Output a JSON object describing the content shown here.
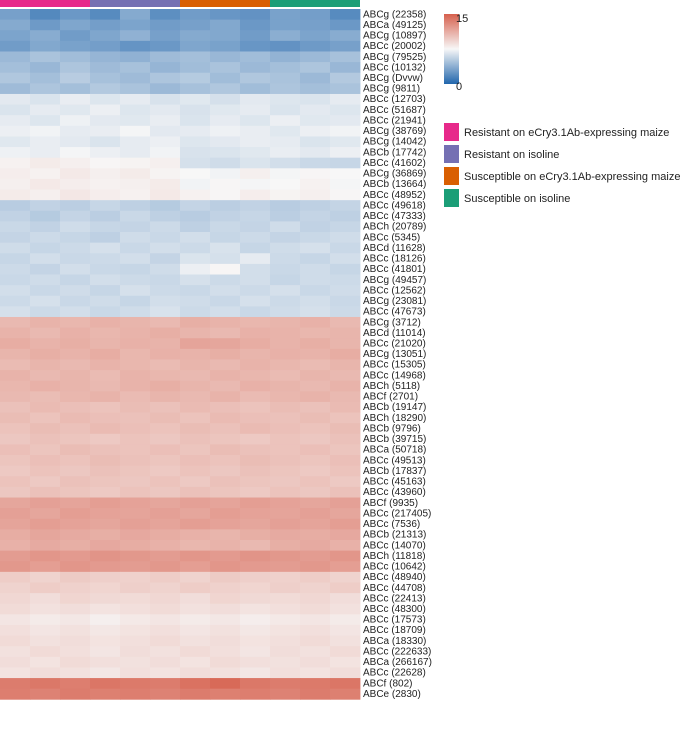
{
  "chart_data": {
    "type": "heatmap",
    "columns": 12,
    "groups": [
      {
        "name": "Resistant on eCry3.1Ab-expressing maize",
        "color": "#e7298a"
      },
      {
        "name": "Resistant on isoline",
        "color": "#7570b3"
      },
      {
        "name": "Susceptible on eCry3.1Ab-expressing maize",
        "color": "#d95f02"
      },
      {
        "name": "Susceptible on isoline",
        "color": "#1b9e77"
      }
    ],
    "color_scale": {
      "min": 0,
      "max": 15,
      "tick_min": "0",
      "tick_max": "15",
      "low_color": "#2166ac",
      "mid_color": "#f7f7f7",
      "high_color": "#d6604d"
    },
    "rows": [
      {
        "label": "ABCg (22358)",
        "values": [
          3.0,
          1.8,
          2.6,
          1.9,
          3.5,
          2.1,
          2.8,
          2.5,
          2.3,
          3.1,
          2.9,
          1.9
        ]
      },
      {
        "label": "ABCa (49125)",
        "values": [
          3.5,
          2.7,
          3.3,
          2.9,
          3.2,
          2.8,
          3.0,
          3.4,
          2.6,
          3.1,
          3.0,
          2.6
        ]
      },
      {
        "label": "ABCg (10897)",
        "values": [
          3.2,
          3.6,
          2.8,
          3.3,
          3.9,
          3.0,
          3.5,
          3.4,
          2.8,
          3.7,
          3.2,
          3.6
        ]
      },
      {
        "label": "ABCc (20002)",
        "values": [
          2.8,
          3.4,
          3.1,
          2.9,
          2.4,
          2.6,
          3.3,
          3.1,
          2.5,
          2.3,
          2.7,
          3.0
        ]
      },
      {
        "label": "ABCg (79525)",
        "values": [
          4.3,
          4.8,
          4.5,
          4.1,
          3.9,
          4.4,
          4.6,
          4.2,
          4.5,
          4.0,
          4.3,
          4.7
        ]
      },
      {
        "label": "ABCc (10132)",
        "values": [
          4.6,
          4.2,
          4.9,
          4.4,
          4.7,
          4.1,
          4.5,
          4.8,
          4.3,
          4.6,
          4.9,
          4.2
        ]
      },
      {
        "label": "ABCg (Dvvw)",
        "values": [
          5.0,
          4.6,
          5.3,
          4.7,
          4.4,
          4.9,
          5.2,
          4.5,
          5.0,
          4.8,
          4.3,
          5.1
        ]
      },
      {
        "label": "ABCg (9811)",
        "values": [
          4.4,
          4.9,
          4.6,
          5.1,
          4.8,
          4.3,
          4.7,
          5.0,
          4.5,
          4.9,
          4.6,
          4.8
        ]
      },
      {
        "label": "ABCc (12703)",
        "values": [
          6.8,
          6.5,
          7.0,
          6.6,
          6.9,
          6.4,
          6.7,
          6.3,
          6.8,
          6.6,
          6.5,
          6.9
        ]
      },
      {
        "label": "ABCc (51687)",
        "values": [
          6.5,
          6.9,
          6.7,
          7.1,
          6.6,
          6.8,
          6.4,
          6.7,
          6.9,
          6.5,
          6.8,
          6.6
        ]
      },
      {
        "label": "ABCc (21941)",
        "values": [
          6.9,
          6.6,
          7.2,
          6.8,
          6.7,
          7.0,
          6.5,
          6.9,
          6.6,
          7.1,
          6.7,
          6.8
        ]
      },
      {
        "label": "ABCg (38769)",
        "values": [
          7.1,
          7.3,
          6.9,
          7.0,
          7.4,
          6.8,
          6.9,
          7.2,
          7.0,
          6.7,
          7.1,
          7.3
        ]
      },
      {
        "label": "ABCg (14042)",
        "values": [
          6.7,
          7.0,
          6.8,
          6.5,
          6.9,
          7.1,
          6.6,
          6.8,
          7.0,
          6.9,
          6.5,
          6.7
        ]
      },
      {
        "label": "ABCb (17742)",
        "values": [
          7.2,
          7.0,
          7.4,
          7.1,
          6.9,
          7.3,
          6.4,
          6.5,
          6.7,
          7.0,
          6.8,
          7.1
        ]
      },
      {
        "label": "ABCc (41602)",
        "values": [
          7.8,
          8.1,
          7.9,
          7.6,
          7.7,
          7.9,
          6.3,
          6.1,
          6.5,
          6.2,
          5.9,
          5.8
        ]
      },
      {
        "label": "ABCg (36869)",
        "values": [
          8.0,
          7.8,
          8.2,
          7.9,
          8.1,
          7.7,
          7.5,
          7.3,
          7.9,
          7.4,
          7.6,
          7.5
        ]
      },
      {
        "label": "ABCb (13664)",
        "values": [
          7.9,
          8.2,
          8.0,
          7.8,
          7.9,
          8.1,
          7.3,
          7.6,
          7.4,
          7.5,
          7.8,
          7.4
        ]
      },
      {
        "label": "ABCc (48952)",
        "values": [
          8.1,
          7.9,
          8.3,
          8.0,
          7.8,
          8.2,
          7.8,
          7.6,
          8.0,
          7.7,
          7.9,
          7.6
        ]
      },
      {
        "label": "ABCc (49618)",
        "values": [
          5.3,
          5.6,
          5.4,
          5.8,
          5.5,
          5.2,
          5.7,
          5.4,
          5.6,
          5.3,
          5.5,
          5.7
        ]
      },
      {
        "label": "ABCc (47333)",
        "values": [
          5.6,
          5.2,
          5.7,
          5.4,
          5.9,
          5.5,
          5.3,
          5.6,
          5.8,
          5.4,
          5.7,
          5.5
        ]
      },
      {
        "label": "ABCh (20789)",
        "values": [
          5.9,
          5.6,
          6.1,
          5.8,
          5.7,
          6.0,
          5.5,
          5.9,
          5.7,
          6.1,
          5.6,
          5.8
        ]
      },
      {
        "label": "ABCc (5345)",
        "values": [
          5.7,
          6.0,
          5.8,
          5.5,
          6.1,
          5.9,
          6.2,
          5.8,
          6.0,
          5.7,
          5.9,
          6.1
        ]
      },
      {
        "label": "ABCd (11628)",
        "values": [
          6.1,
          5.8,
          6.0,
          6.3,
          5.9,
          6.2,
          6.0,
          6.4,
          5.8,
          6.1,
          6.3,
          5.9
        ]
      },
      {
        "label": "ABCc (18126)",
        "values": [
          5.8,
          6.2,
          5.9,
          6.0,
          6.2,
          5.7,
          6.5,
          6.3,
          6.9,
          6.0,
          5.8,
          6.2
        ]
      },
      {
        "label": "ABCc (41801)",
        "values": [
          6.0,
          5.7,
          6.2,
          5.9,
          5.8,
          6.1,
          7.1,
          7.6,
          6.2,
          5.9,
          6.1,
          5.8
        ]
      },
      {
        "label": "ABCg (49457)",
        "values": [
          5.9,
          6.1,
          5.8,
          6.2,
          6.0,
          5.9,
          6.3,
          6.0,
          6.2,
          5.8,
          6.1,
          6.0
        ]
      },
      {
        "label": "ABCc (12562)",
        "values": [
          6.2,
          5.9,
          6.1,
          5.8,
          6.3,
          6.0,
          5.9,
          6.2,
          6.0,
          6.3,
          5.9,
          6.1
        ]
      },
      {
        "label": "ABCg (23081)",
        "values": [
          6.0,
          6.3,
          5.9,
          6.1,
          5.8,
          6.2,
          6.1,
          5.9,
          6.3,
          6.0,
          6.2,
          5.9
        ]
      },
      {
        "label": "ABCc (47673)",
        "values": [
          6.3,
          6.0,
          6.2,
          5.9,
          6.1,
          6.4,
          6.0,
          6.2,
          5.9,
          6.1,
          6.3,
          6.0
        ]
      },
      {
        "label": "ABCg (3712)",
        "values": [
          10.6,
          10.9,
          10.7,
          11.0,
          10.8,
          10.6,
          11.1,
          10.9,
          10.7,
          10.8,
          11.0,
          10.6
        ]
      },
      {
        "label": "ABCd (11014)",
        "values": [
          10.9,
          10.6,
          11.0,
          10.7,
          10.9,
          11.1,
          10.8,
          10.6,
          11.0,
          10.9,
          10.7,
          10.8
        ]
      },
      {
        "label": "ABCc (21020)",
        "values": [
          11.2,
          10.9,
          11.1,
          10.8,
          11.0,
          10.9,
          11.6,
          11.5,
          11.2,
          10.9,
          11.1,
          10.8
        ]
      },
      {
        "label": "ABCg (13051)",
        "values": [
          10.8,
          11.1,
          10.9,
          11.2,
          10.7,
          11.0,
          10.9,
          11.1,
          10.8,
          11.0,
          10.9,
          11.2
        ]
      },
      {
        "label": "ABCc (15305)",
        "values": [
          10.5,
          10.8,
          10.6,
          10.9,
          10.7,
          10.5,
          10.8,
          10.6,
          10.9,
          10.7,
          10.5,
          10.8
        ]
      },
      {
        "label": "ABCc (14968)",
        "values": [
          10.9,
          10.6,
          10.8,
          10.5,
          10.9,
          10.7,
          10.6,
          10.9,
          10.7,
          10.5,
          10.8,
          10.6
        ]
      },
      {
        "label": "ABCh (5118)",
        "values": [
          10.7,
          11.0,
          10.8,
          10.6,
          10.9,
          11.1,
          10.8,
          10.6,
          11.0,
          10.8,
          10.6,
          10.9
        ]
      },
      {
        "label": "ABCf (2701)",
        "values": [
          10.6,
          10.4,
          10.7,
          10.9,
          10.5,
          10.8,
          10.6,
          10.9,
          10.5,
          10.7,
          10.9,
          10.6
        ]
      },
      {
        "label": "ABCb (19147)",
        "values": [
          10.2,
          10.5,
          10.3,
          10.1,
          10.4,
          10.2,
          10.5,
          10.3,
          10.1,
          10.4,
          10.2,
          10.5
        ]
      },
      {
        "label": "ABCh (18290)",
        "values": [
          10.4,
          10.1,
          10.5,
          10.3,
          10.2,
          10.4,
          10.1,
          10.5,
          10.3,
          10.2,
          10.4,
          10.1
        ]
      },
      {
        "label": "ABCb (9796)",
        "values": [
          10.1,
          10.4,
          10.2,
          10.5,
          10.3,
          10.1,
          10.4,
          10.2,
          10.5,
          10.3,
          10.1,
          10.4
        ]
      },
      {
        "label": "ABCb (39715)",
        "values": [
          9.9,
          10.2,
          10.0,
          9.8,
          10.1,
          9.9,
          10.2,
          10.0,
          9.8,
          10.1,
          9.9,
          10.2
        ]
      },
      {
        "label": "ABCa (50718)",
        "values": [
          10.3,
          10.0,
          10.4,
          10.2,
          10.1,
          10.3,
          10.0,
          10.4,
          10.2,
          10.1,
          10.3,
          10.0
        ]
      },
      {
        "label": "ABCc (49513)",
        "values": [
          10.0,
          10.3,
          10.1,
          10.4,
          10.2,
          10.0,
          10.3,
          10.1,
          10.4,
          10.2,
          10.0,
          10.3
        ]
      },
      {
        "label": "ABCb (17837)",
        "values": [
          9.8,
          10.1,
          9.9,
          10.2,
          10.0,
          9.8,
          10.1,
          9.9,
          10.2,
          10.0,
          9.8,
          10.1
        ]
      },
      {
        "label": "ABCc (45163)",
        "values": [
          10.1,
          9.8,
          10.2,
          10.0,
          9.9,
          10.1,
          9.8,
          10.2,
          10.0,
          9.9,
          10.1,
          9.8
        ]
      },
      {
        "label": "ABCc (43960)",
        "values": [
          9.9,
          10.2,
          10.0,
          9.8,
          10.1,
          9.9,
          10.2,
          10.0,
          9.8,
          10.1,
          9.9,
          10.2
        ]
      },
      {
        "label": "ABCf (9935)",
        "values": [
          11.5,
          11.8,
          11.6,
          11.9,
          11.7,
          11.5,
          11.8,
          11.6,
          11.9,
          11.7,
          11.5,
          11.8
        ]
      },
      {
        "label": "ABCc (217405)",
        "values": [
          11.8,
          11.5,
          11.9,
          11.7,
          11.6,
          11.8,
          11.5,
          11.9,
          11.7,
          11.6,
          11.8,
          11.5
        ]
      },
      {
        "label": "ABCc (7536)",
        "values": [
          11.6,
          11.9,
          11.7,
          11.5,
          11.8,
          11.6,
          11.9,
          11.7,
          11.5,
          11.8,
          11.6,
          11.9
        ]
      },
      {
        "label": "ABCb (21313)",
        "values": [
          11.2,
          11.5,
          11.3,
          11.1,
          11.4,
          11.2,
          11.0,
          10.8,
          11.1,
          11.3,
          11.2,
          11.4
        ]
      },
      {
        "label": "ABCc (14070)",
        "values": [
          11.0,
          11.3,
          11.1,
          11.4,
          11.2,
          11.0,
          10.7,
          10.9,
          10.6,
          11.1,
          11.3,
          11.0
        ]
      },
      {
        "label": "ABCh (11818)",
        "values": [
          12.0,
          12.3,
          12.1,
          12.4,
          12.2,
          12.0,
          12.3,
          12.1,
          12.4,
          12.2,
          12.0,
          12.3
        ]
      },
      {
        "label": "ABCc (10642)",
        "values": [
          12.2,
          11.9,
          12.3,
          12.1,
          12.0,
          12.2,
          11.9,
          12.3,
          12.1,
          12.0,
          12.2,
          11.9
        ]
      },
      {
        "label": "ABCc (48940)",
        "values": [
          9.6,
          9.3,
          9.7,
          9.5,
          9.4,
          9.6,
          9.3,
          9.7,
          9.5,
          9.4,
          9.6,
          9.3
        ]
      },
      {
        "label": "ABCc (44708)",
        "values": [
          9.3,
          9.6,
          9.4,
          9.2,
          9.5,
          9.3,
          9.6,
          9.4,
          9.2,
          9.5,
          9.3,
          9.6
        ]
      },
      {
        "label": "ABCc (22413)",
        "values": [
          9.1,
          8.8,
          9.2,
          9.0,
          8.9,
          9.1,
          8.8,
          9.2,
          9.0,
          8.9,
          9.1,
          8.8
        ]
      },
      {
        "label": "ABCc (48300)",
        "values": [
          8.9,
          8.6,
          8.8,
          8.5,
          8.7,
          8.9,
          8.6,
          8.8,
          8.5,
          8.7,
          8.9,
          8.6
        ]
      },
      {
        "label": "ABCc (17573)",
        "values": [
          8.4,
          8.1,
          8.3,
          7.9,
          8.2,
          8.4,
          8.1,
          8.3,
          8.0,
          8.2,
          8.4,
          8.1
        ]
      },
      {
        "label": "ABCc (18709)",
        "values": [
          8.7,
          8.4,
          8.6,
          8.3,
          8.5,
          8.7,
          8.4,
          8.6,
          8.3,
          8.5,
          8.7,
          8.4
        ]
      },
      {
        "label": "ABCa (18330)",
        "values": [
          8.9,
          8.6,
          8.8,
          8.5,
          8.7,
          8.9,
          8.6,
          8.8,
          8.5,
          8.7,
          8.9,
          8.6
        ]
      },
      {
        "label": "ABCc (222633)",
        "values": [
          8.6,
          8.9,
          8.7,
          8.4,
          8.8,
          8.6,
          8.9,
          8.7,
          8.4,
          8.8,
          8.6,
          8.9
        ]
      },
      {
        "label": "ABCa (266167)",
        "values": [
          8.8,
          8.5,
          8.9,
          8.7,
          8.6,
          8.8,
          8.5,
          8.9,
          8.7,
          8.6,
          8.8,
          8.5
        ]
      },
      {
        "label": "ABCc (22628)",
        "values": [
          8.5,
          8.8,
          8.6,
          8.3,
          8.7,
          8.5,
          8.8,
          8.6,
          8.3,
          8.7,
          8.5,
          8.8
        ]
      },
      {
        "label": "ABCf (802)",
        "values": [
          13.6,
          13.8,
          13.5,
          13.9,
          13.7,
          13.6,
          14.1,
          14.5,
          13.8,
          13.6,
          13.7,
          13.9
        ]
      },
      {
        "label": "ABCe (2830)",
        "values": [
          13.5,
          13.3,
          13.6,
          13.4,
          13.5,
          13.3,
          13.6,
          13.4,
          13.5,
          13.3,
          13.6,
          13.4
        ]
      }
    ]
  }
}
